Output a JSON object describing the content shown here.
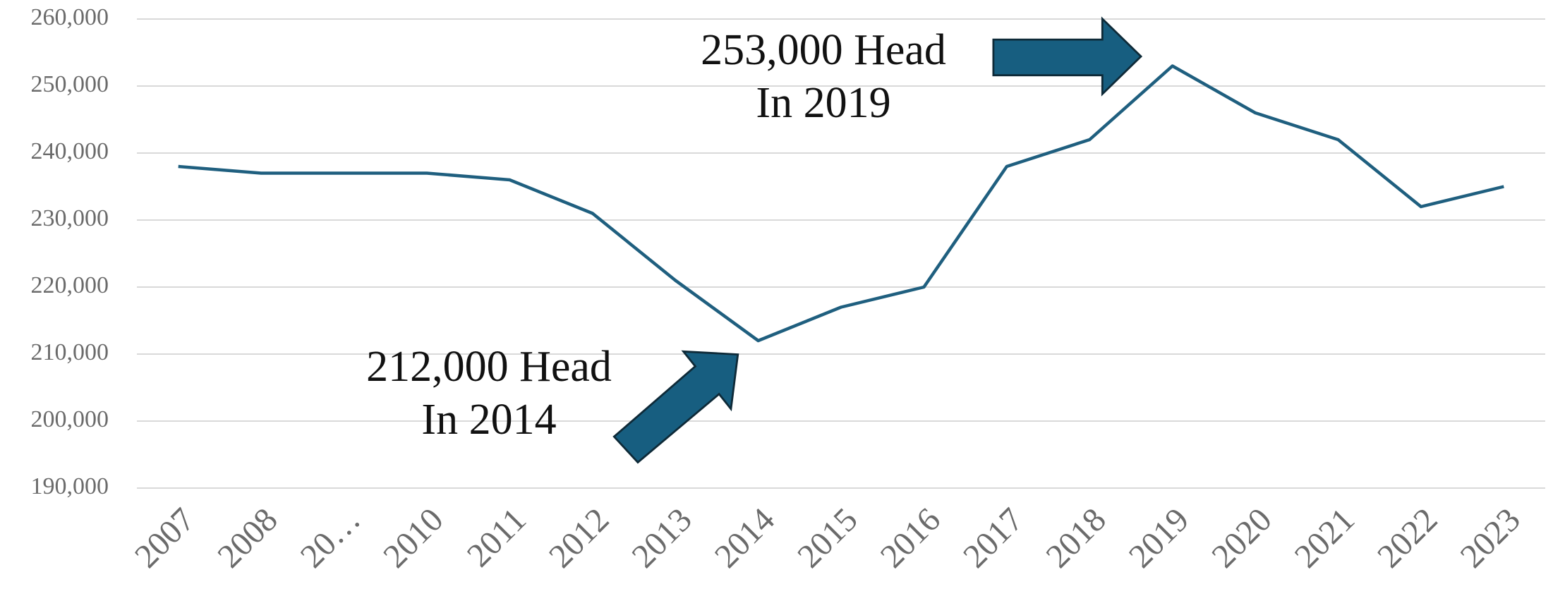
{
  "chart_data": {
    "type": "line",
    "categories": [
      "2007",
      "2008",
      "20…",
      "2010",
      "2011",
      "2012",
      "2013",
      "2014",
      "2015",
      "2016",
      "2017",
      "2018",
      "2019",
      "2020",
      "2021",
      "2022",
      "2023"
    ],
    "values": [
      238000,
      237000,
      237000,
      237000,
      236000,
      231000,
      221000,
      212000,
      217000,
      220000,
      238000,
      242000,
      253000,
      246000,
      242000,
      232000,
      235000
    ],
    "color": "#1f5f7f",
    "ylim": [
      190000,
      260000
    ],
    "yticks": [
      {
        "value": 190000,
        "label": "190,000"
      },
      {
        "value": 200000,
        "label": "200,000"
      },
      {
        "value": 210000,
        "label": "210,000"
      },
      {
        "value": 220000,
        "label": "220,000"
      },
      {
        "value": 230000,
        "label": "230,000"
      },
      {
        "value": 240000,
        "label": "240,000"
      },
      {
        "value": 250000,
        "label": "250,000"
      },
      {
        "value": 260000,
        "label": "260,000"
      }
    ],
    "grid": true,
    "annotations": [
      "253,000 Head",
      "In 2019",
      "212,000 Head",
      "In 2014"
    ]
  }
}
